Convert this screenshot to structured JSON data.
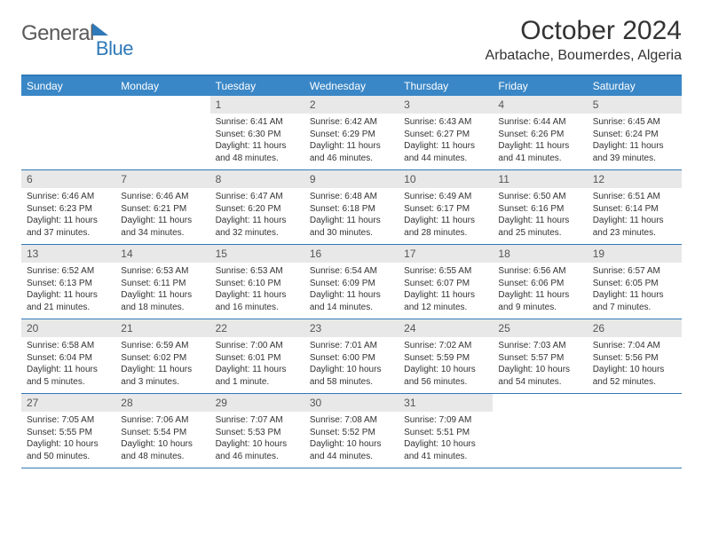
{
  "logo": {
    "part1": "General",
    "part2": "Blue"
  },
  "title": "October 2024",
  "location": "Arbatache, Boumerdes, Algeria",
  "day_names": [
    "Sunday",
    "Monday",
    "Tuesday",
    "Wednesday",
    "Thursday",
    "Friday",
    "Saturday"
  ],
  "colors": {
    "header_bg": "#3a87c7",
    "border": "#2f79b9",
    "daynum_bg": "#e8e8e8",
    "text": "#333333"
  },
  "weeks": [
    [
      {
        "n": "",
        "sr": "",
        "ss": "",
        "dl": ""
      },
      {
        "n": "",
        "sr": "",
        "ss": "",
        "dl": ""
      },
      {
        "n": "1",
        "sr": "Sunrise: 6:41 AM",
        "ss": "Sunset: 6:30 PM",
        "dl": "Daylight: 11 hours and 48 minutes."
      },
      {
        "n": "2",
        "sr": "Sunrise: 6:42 AM",
        "ss": "Sunset: 6:29 PM",
        "dl": "Daylight: 11 hours and 46 minutes."
      },
      {
        "n": "3",
        "sr": "Sunrise: 6:43 AM",
        "ss": "Sunset: 6:27 PM",
        "dl": "Daylight: 11 hours and 44 minutes."
      },
      {
        "n": "4",
        "sr": "Sunrise: 6:44 AM",
        "ss": "Sunset: 6:26 PM",
        "dl": "Daylight: 11 hours and 41 minutes."
      },
      {
        "n": "5",
        "sr": "Sunrise: 6:45 AM",
        "ss": "Sunset: 6:24 PM",
        "dl": "Daylight: 11 hours and 39 minutes."
      }
    ],
    [
      {
        "n": "6",
        "sr": "Sunrise: 6:46 AM",
        "ss": "Sunset: 6:23 PM",
        "dl": "Daylight: 11 hours and 37 minutes."
      },
      {
        "n": "7",
        "sr": "Sunrise: 6:46 AM",
        "ss": "Sunset: 6:21 PM",
        "dl": "Daylight: 11 hours and 34 minutes."
      },
      {
        "n": "8",
        "sr": "Sunrise: 6:47 AM",
        "ss": "Sunset: 6:20 PM",
        "dl": "Daylight: 11 hours and 32 minutes."
      },
      {
        "n": "9",
        "sr": "Sunrise: 6:48 AM",
        "ss": "Sunset: 6:18 PM",
        "dl": "Daylight: 11 hours and 30 minutes."
      },
      {
        "n": "10",
        "sr": "Sunrise: 6:49 AM",
        "ss": "Sunset: 6:17 PM",
        "dl": "Daylight: 11 hours and 28 minutes."
      },
      {
        "n": "11",
        "sr": "Sunrise: 6:50 AM",
        "ss": "Sunset: 6:16 PM",
        "dl": "Daylight: 11 hours and 25 minutes."
      },
      {
        "n": "12",
        "sr": "Sunrise: 6:51 AM",
        "ss": "Sunset: 6:14 PM",
        "dl": "Daylight: 11 hours and 23 minutes."
      }
    ],
    [
      {
        "n": "13",
        "sr": "Sunrise: 6:52 AM",
        "ss": "Sunset: 6:13 PM",
        "dl": "Daylight: 11 hours and 21 minutes."
      },
      {
        "n": "14",
        "sr": "Sunrise: 6:53 AM",
        "ss": "Sunset: 6:11 PM",
        "dl": "Daylight: 11 hours and 18 minutes."
      },
      {
        "n": "15",
        "sr": "Sunrise: 6:53 AM",
        "ss": "Sunset: 6:10 PM",
        "dl": "Daylight: 11 hours and 16 minutes."
      },
      {
        "n": "16",
        "sr": "Sunrise: 6:54 AM",
        "ss": "Sunset: 6:09 PM",
        "dl": "Daylight: 11 hours and 14 minutes."
      },
      {
        "n": "17",
        "sr": "Sunrise: 6:55 AM",
        "ss": "Sunset: 6:07 PM",
        "dl": "Daylight: 11 hours and 12 minutes."
      },
      {
        "n": "18",
        "sr": "Sunrise: 6:56 AM",
        "ss": "Sunset: 6:06 PM",
        "dl": "Daylight: 11 hours and 9 minutes."
      },
      {
        "n": "19",
        "sr": "Sunrise: 6:57 AM",
        "ss": "Sunset: 6:05 PM",
        "dl": "Daylight: 11 hours and 7 minutes."
      }
    ],
    [
      {
        "n": "20",
        "sr": "Sunrise: 6:58 AM",
        "ss": "Sunset: 6:04 PM",
        "dl": "Daylight: 11 hours and 5 minutes."
      },
      {
        "n": "21",
        "sr": "Sunrise: 6:59 AM",
        "ss": "Sunset: 6:02 PM",
        "dl": "Daylight: 11 hours and 3 minutes."
      },
      {
        "n": "22",
        "sr": "Sunrise: 7:00 AM",
        "ss": "Sunset: 6:01 PM",
        "dl": "Daylight: 11 hours and 1 minute."
      },
      {
        "n": "23",
        "sr": "Sunrise: 7:01 AM",
        "ss": "Sunset: 6:00 PM",
        "dl": "Daylight: 10 hours and 58 minutes."
      },
      {
        "n": "24",
        "sr": "Sunrise: 7:02 AM",
        "ss": "Sunset: 5:59 PM",
        "dl": "Daylight: 10 hours and 56 minutes."
      },
      {
        "n": "25",
        "sr": "Sunrise: 7:03 AM",
        "ss": "Sunset: 5:57 PM",
        "dl": "Daylight: 10 hours and 54 minutes."
      },
      {
        "n": "26",
        "sr": "Sunrise: 7:04 AM",
        "ss": "Sunset: 5:56 PM",
        "dl": "Daylight: 10 hours and 52 minutes."
      }
    ],
    [
      {
        "n": "27",
        "sr": "Sunrise: 7:05 AM",
        "ss": "Sunset: 5:55 PM",
        "dl": "Daylight: 10 hours and 50 minutes."
      },
      {
        "n": "28",
        "sr": "Sunrise: 7:06 AM",
        "ss": "Sunset: 5:54 PM",
        "dl": "Daylight: 10 hours and 48 minutes."
      },
      {
        "n": "29",
        "sr": "Sunrise: 7:07 AM",
        "ss": "Sunset: 5:53 PM",
        "dl": "Daylight: 10 hours and 46 minutes."
      },
      {
        "n": "30",
        "sr": "Sunrise: 7:08 AM",
        "ss": "Sunset: 5:52 PM",
        "dl": "Daylight: 10 hours and 44 minutes."
      },
      {
        "n": "31",
        "sr": "Sunrise: 7:09 AM",
        "ss": "Sunset: 5:51 PM",
        "dl": "Daylight: 10 hours and 41 minutes."
      },
      {
        "n": "",
        "sr": "",
        "ss": "",
        "dl": ""
      },
      {
        "n": "",
        "sr": "",
        "ss": "",
        "dl": ""
      }
    ]
  ]
}
